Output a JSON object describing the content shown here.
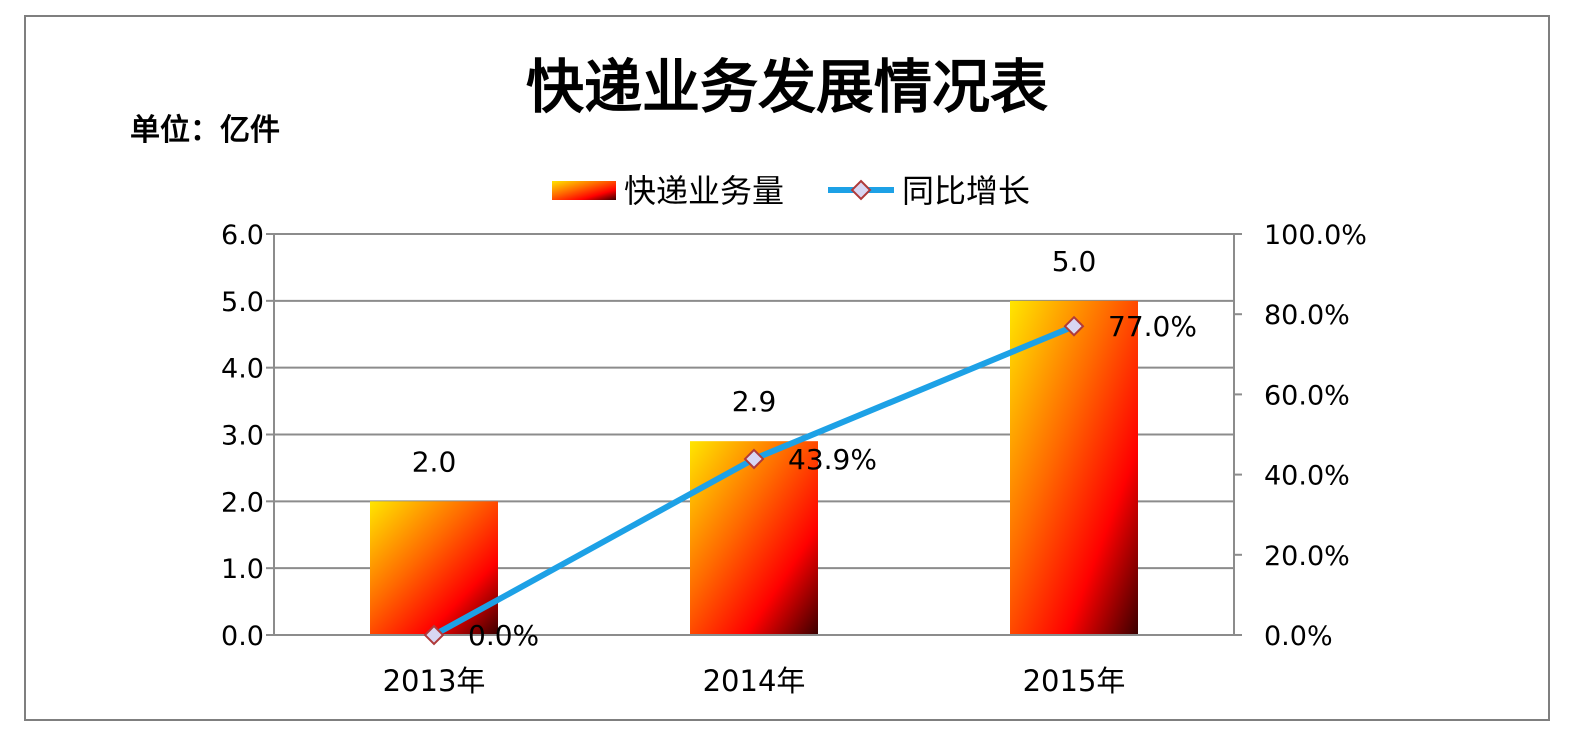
{
  "chart_data": {
    "type": "bar",
    "title": "快递业务发展情况表",
    "unit_label": "单位：亿件",
    "categories": [
      "2013年",
      "2014年",
      "2015年"
    ],
    "series": [
      {
        "name": "快递业务量",
        "kind": "bar",
        "axis": "left",
        "values": [
          2.0,
          2.9,
          5.0
        ],
        "value_labels": [
          "2.0",
          "2.9",
          "5.0"
        ]
      },
      {
        "name": "同比增长",
        "kind": "line",
        "axis": "right",
        "values": [
          0.0,
          43.9,
          77.0
        ],
        "value_labels": [
          "0.0%",
          "43.9%",
          "77.0%"
        ],
        "color": "#1da1e6",
        "marker": "diamond"
      }
    ],
    "y_left": {
      "ylim": [
        0,
        6
      ],
      "ticks": [
        "0.0",
        "1.0",
        "2.0",
        "3.0",
        "4.0",
        "5.0",
        "6.0"
      ]
    },
    "y_right": {
      "ylim": [
        0,
        100
      ],
      "ticks": [
        "0.0%",
        "20.0%",
        "40.0%",
        "60.0%",
        "80.0%",
        "100.0%"
      ]
    },
    "grid": true,
    "legend_position": "top-center",
    "bar_gradient": [
      "#ffe600",
      "#ff6a00",
      "#ff0000",
      "#3a0000"
    ]
  }
}
